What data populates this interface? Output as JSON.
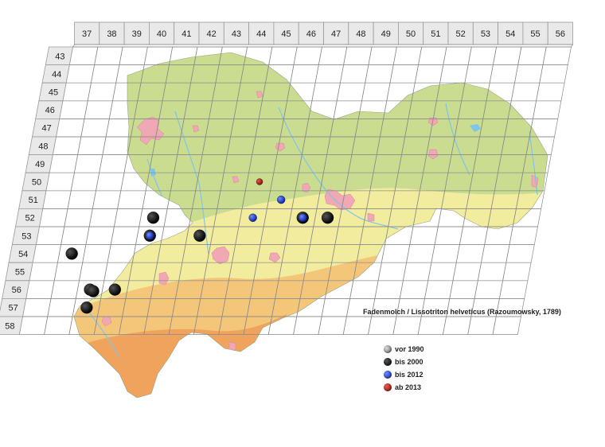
{
  "map": {
    "column_labels": [
      "37",
      "38",
      "39",
      "40",
      "41",
      "42",
      "43",
      "44",
      "45",
      "46",
      "47",
      "48",
      "49",
      "50",
      "51",
      "52",
      "53",
      "54",
      "55",
      "56"
    ],
    "row_labels": [
      "43",
      "44",
      "45",
      "46",
      "47",
      "48",
      "49",
      "50",
      "51",
      "52",
      "53",
      "54",
      "55",
      "56",
      "57",
      "58"
    ],
    "species_title": "Fadenmolch / Lissotriton helveticus (Razoumowsky, 1789)",
    "colors": {
      "lowland": "#c9dc8f",
      "hills": "#f2ec9e",
      "upland": "#f4c67a",
      "mountain": "#f0a35c",
      "settlement": "#f0a8b4",
      "water": "#7ec6e8",
      "grid": "#8a8a8a"
    }
  },
  "legend": [
    {
      "label": "vor 1990",
      "color": "#8f8f8f",
      "icon": "grey-circle-icon"
    },
    {
      "label": "bis 2000",
      "color": "#111111",
      "icon": "black-circle-icon"
    },
    {
      "label": "bis 2012",
      "color": "#1e3fcf",
      "icon": "blue-circle-icon"
    },
    {
      "label": "ab 2013",
      "color": "#b0180f",
      "icon": "red-circle-icon"
    }
  ],
  "records": [
    {
      "col": "45",
      "row": "50",
      "period": "ab 2013"
    },
    {
      "col": "46",
      "row": "51",
      "period": "bis 2012"
    },
    {
      "col": "41",
      "row": "52",
      "period": "bis 2000"
    },
    {
      "col": "47",
      "row": "52",
      "period": "bis 2000"
    },
    {
      "col": "47",
      "row": "52",
      "period": "bis 2012"
    },
    {
      "col": "45",
      "row": "52",
      "period": "bis 2012"
    },
    {
      "col": "48",
      "row": "52",
      "period": "bis 2000"
    },
    {
      "col": "41",
      "row": "53",
      "period": "bis 2000"
    },
    {
      "col": "41",
      "row": "53",
      "period": "bis 2012"
    },
    {
      "col": "43",
      "row": "53",
      "period": "bis 2000"
    },
    {
      "col": "38",
      "row": "54",
      "period": "bis 2000"
    },
    {
      "col": "39",
      "row": "56",
      "period": "bis 2000"
    },
    {
      "col": "39",
      "row": "56",
      "period": "bis 2000"
    },
    {
      "col": "40",
      "row": "56",
      "period": "bis 2000"
    },
    {
      "col": "39",
      "row": "57",
      "period": "bis 2000"
    }
  ]
}
